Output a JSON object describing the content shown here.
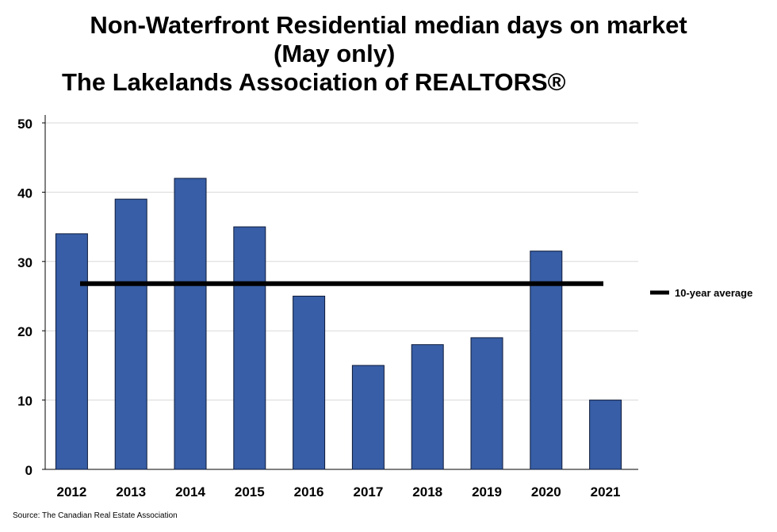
{
  "title_lines": [
    "Non-Waterfront Residential median days on market",
    "(May only)",
    "The Lakelands Association of REALTORS®"
  ],
  "source": "Source: The Canadian Real Estate Association",
  "chart_data": {
    "type": "bar",
    "title": "Non-Waterfront Residential median days on market (May only) The Lakelands Association of REALTORS®",
    "categories": [
      "2012",
      "2013",
      "2014",
      "2015",
      "2016",
      "2017",
      "2018",
      "2019",
      "2020",
      "2021"
    ],
    "values": [
      34,
      39,
      42,
      35,
      25,
      15,
      18,
      19,
      31.5,
      10
    ],
    "average_line": {
      "label": "10-year average",
      "value": 26.8
    },
    "ylim": [
      0,
      50
    ],
    "yticks": [
      0,
      10,
      20,
      30,
      40,
      50
    ],
    "xlabel": "",
    "ylabel": "",
    "grid": true,
    "legend": "right",
    "colors": {
      "bar": "#375ea6",
      "bar_stroke": "#0d1a3a",
      "average": "#000000",
      "grid": "#d9d9d9"
    }
  }
}
